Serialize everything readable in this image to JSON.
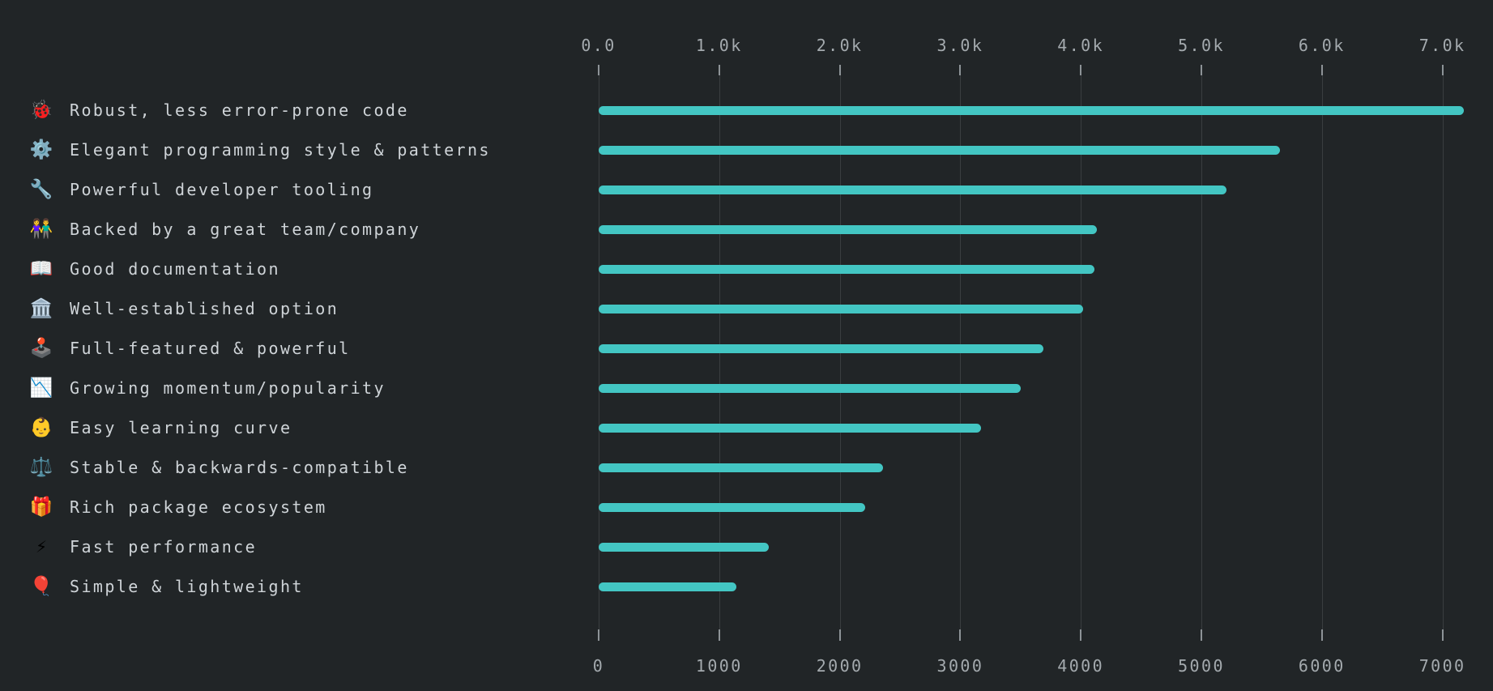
{
  "chart_data": {
    "type": "bar",
    "orientation": "horizontal",
    "title": "",
    "xlabel": "",
    "ylabel": "",
    "xlim": [
      0,
      7000
    ],
    "grid": true,
    "legend": false,
    "axis_position": "ticks on top and bottom, category labels with emoji icons on left",
    "categories": [
      "Robust, less error-prone code",
      "Elegant programming style & patterns",
      "Powerful developer tooling",
      "Backed by a great team/company",
      "Good documentation",
      "Well-established option",
      "Full-featured & powerful",
      "Growing momentum/popularity",
      "Easy learning curve",
      "Stable & backwards-compatible",
      "Rich package ecosystem",
      "Fast performance",
      "Simple & lightweight"
    ],
    "icons": [
      "🐞",
      "⚙️",
      "🔧",
      "👫",
      "📖",
      "🏛️",
      "🕹️",
      "📉",
      "👶",
      "⚖️",
      "🎁",
      "⚡",
      "🎈"
    ],
    "icon_names": [
      "lady-beetle-icon",
      "gear-icon",
      "wrench-icon",
      "couple-icon",
      "open-book-icon",
      "classical-building-icon",
      "joystick-icon",
      "chart-decreasing-icon",
      "baby-icon",
      "balance-scale-icon",
      "gift-icon",
      "high-voltage-icon",
      "balloon-icon"
    ],
    "values": [
      7180,
      5650,
      5210,
      4130,
      4110,
      4020,
      3690,
      3500,
      3170,
      2360,
      2210,
      1410,
      1140
    ],
    "x_ticks_top": [
      "0.0",
      "1.0k",
      "2.0k",
      "3.0k",
      "4.0k",
      "5.0k",
      "6.0k",
      "7.0k"
    ],
    "x_ticks_bottom": [
      "0",
      "1000",
      "2000",
      "3000",
      "4000",
      "5000",
      "6000",
      "7000"
    ]
  },
  "style": {
    "background": "#212527",
    "bar_color": "#43c6c3",
    "gridline_color": "#3a3e40",
    "tick_color": "#8d9397",
    "axis_label_color": "#a4aaae",
    "category_label_color": "#cfd4d8"
  }
}
